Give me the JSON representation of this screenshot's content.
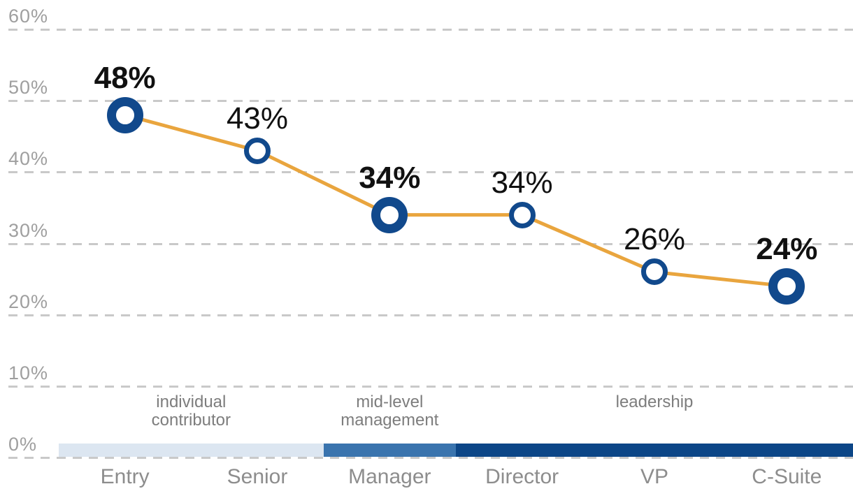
{
  "chart_data": {
    "type": "line",
    "title": "",
    "xlabel": "",
    "ylabel": "",
    "categories": [
      "Entry",
      "Senior",
      "Manager",
      "Director",
      "VP",
      "C-Suite"
    ],
    "values": [
      48,
      43,
      34,
      34,
      26,
      24
    ],
    "point_labels": [
      "48%",
      "43%",
      "34%",
      "34%",
      "26%",
      "24%"
    ],
    "emphasized": [
      true,
      false,
      true,
      false,
      false,
      true
    ],
    "ylim": [
      0,
      60
    ],
    "y_ticks": [
      {
        "value": 0,
        "label": "0%"
      },
      {
        "value": 10,
        "label": "10%"
      },
      {
        "value": 20,
        "label": "20%"
      },
      {
        "value": 30,
        "label": "30%"
      },
      {
        "value": 40,
        "label": "40%"
      },
      {
        "value": 50,
        "label": "50%"
      },
      {
        "value": 60,
        "label": "60%"
      }
    ],
    "grid": "horizontal-dashed",
    "legend_position": "none",
    "groups": [
      {
        "label": "individual contributor",
        "lines": "individual\ncontributor",
        "start_index": 0,
        "end_index": 1,
        "color": "#DCE6F1"
      },
      {
        "label": "mid-level management",
        "lines": "mid-level\nmanagement",
        "start_index": 2,
        "end_index": 2,
        "color": "#3A74AE"
      },
      {
        "label": "leadership",
        "lines": "leadership",
        "start_index": 3,
        "end_index": 5,
        "color": "#0C4687"
      }
    ],
    "colors": {
      "line": "#E9A53E",
      "marker_ring": "#11498C",
      "marker_fill": "#FFFFFF",
      "gridline": "#C9C9C9",
      "y_tick_text": "#9F9F9F",
      "category_text": "#8D8D8D",
      "group_text": "#7D7D7D",
      "data_label_text": "#111111"
    }
  }
}
